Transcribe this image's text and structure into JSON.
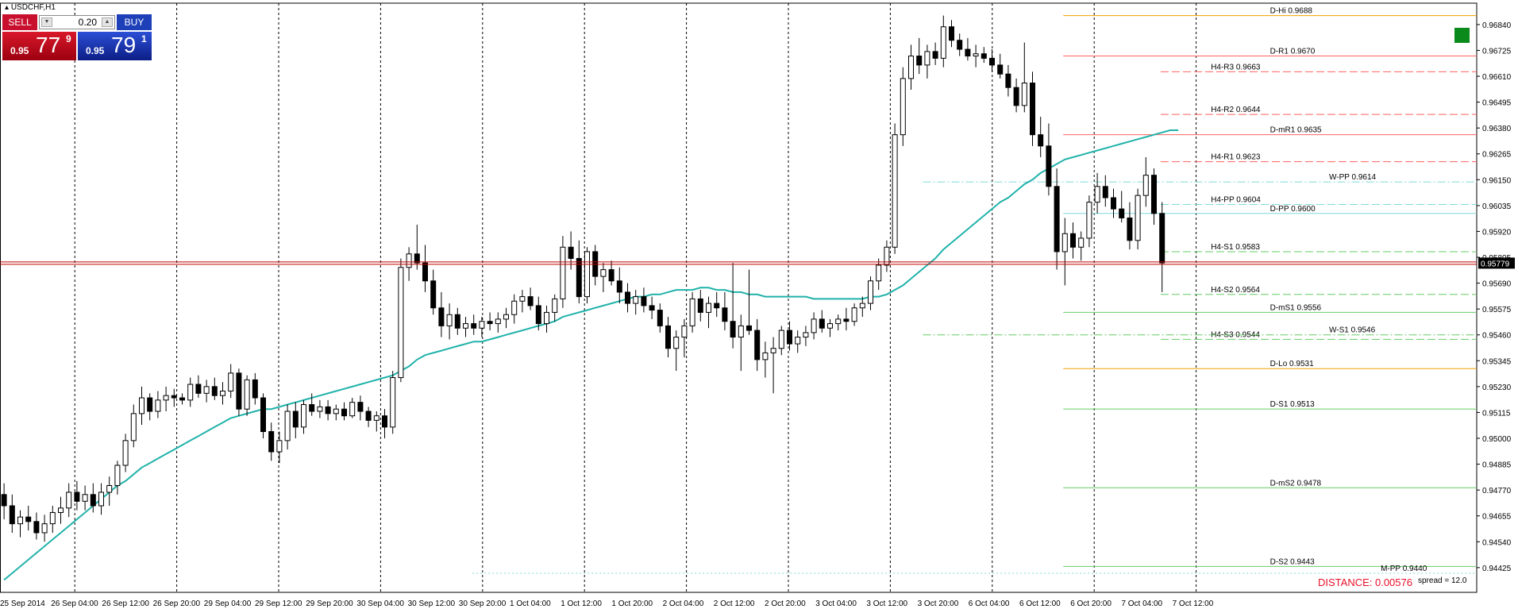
{
  "symbol": "USDCHF,H1",
  "trade_panel": {
    "sell_label": "SELL",
    "buy_label": "BUY",
    "lot": "0.20",
    "sell": {
      "small": "0.95",
      "big": "77",
      "sup": "9"
    },
    "buy": {
      "small": "0.95",
      "big": "79",
      "sup": "1"
    }
  },
  "distance": "DISTANCE: 0.00576",
  "spread": "spread = 12.0",
  "colors": {
    "bull_candle": "#ffffff",
    "bear_candle": "#000000",
    "moving_average": "#20b2aa",
    "bid_line": "#c00000",
    "pivot_red": "#ff6060",
    "pivot_orange": "#f0a000",
    "pivot_green": "#66cc66",
    "pivot_cyan": "#7fd8d8"
  },
  "chart_data": {
    "type": "candlestick",
    "title": "USDCHF,H1",
    "ylim": [
      0.94315,
      0.96935
    ],
    "y_ticks": [
      "0.96840",
      "0.96725",
      "0.96610",
      "0.96495",
      "0.96380",
      "0.96265",
      "0.96150",
      "0.96035",
      "0.95920",
      "0.95805",
      "0.95690",
      "0.95575",
      "0.95460",
      "0.95345",
      "0.95230",
      "0.95115",
      "0.95000",
      "0.94885",
      "0.94770",
      "0.94655",
      "0.94540",
      "0.94425"
    ],
    "x_labels": [
      "25 Sep 2014",
      "26 Sep 04:00",
      "26 Sep 12:00",
      "26 Sep 20:00",
      "29 Sep 04:00",
      "29 Sep 12:00",
      "29 Sep 20:00",
      "30 Sep 04:00",
      "30 Sep 12:00",
      "30 Sep 20:00",
      "1 Oct 04:00",
      "1 Oct 12:00",
      "1 Oct 20:00",
      "2 Oct 04:00",
      "2 Oct 12:00",
      "2 Oct 20:00",
      "3 Oct 04:00",
      "3 Oct 12:00",
      "3 Oct 20:00",
      "6 Oct 04:00",
      "6 Oct 12:00",
      "6 Oct 20:00",
      "7 Oct 04:00",
      "7 Oct 12:00"
    ],
    "bid_price": "0.95779",
    "bid_value": 0.95779,
    "ohlc": [
      [
        0.9475,
        0.948,
        0.9464,
        0.947
      ],
      [
        0.947,
        0.9475,
        0.9458,
        0.9462
      ],
      [
        0.9462,
        0.9468,
        0.9456,
        0.9465
      ],
      [
        0.9465,
        0.947,
        0.9459,
        0.9463
      ],
      [
        0.9463,
        0.9467,
        0.9455,
        0.9458
      ],
      [
        0.9458,
        0.9466,
        0.9454,
        0.9462
      ],
      [
        0.9462,
        0.947,
        0.9458,
        0.9467
      ],
      [
        0.9467,
        0.9474,
        0.9462,
        0.9469
      ],
      [
        0.9469,
        0.948,
        0.9465,
        0.9476
      ],
      [
        0.9476,
        0.9481,
        0.9468,
        0.9472
      ],
      [
        0.9472,
        0.9479,
        0.9468,
        0.9475
      ],
      [
        0.9475,
        0.948,
        0.9467,
        0.947
      ],
      [
        0.947,
        0.948,
        0.9466,
        0.9476
      ],
      [
        0.9476,
        0.9483,
        0.947,
        0.9479
      ],
      [
        0.9479,
        0.949,
        0.9475,
        0.9488
      ],
      [
        0.9488,
        0.9502,
        0.9485,
        0.9499
      ],
      [
        0.9499,
        0.9515,
        0.9496,
        0.9511
      ],
      [
        0.9511,
        0.9523,
        0.9506,
        0.9518
      ],
      [
        0.9518,
        0.952,
        0.9508,
        0.9512
      ],
      [
        0.9512,
        0.9521,
        0.9509,
        0.9517
      ],
      [
        0.9517,
        0.9523,
        0.9512,
        0.9519
      ],
      [
        0.9519,
        0.9522,
        0.9514,
        0.9518
      ],
      [
        0.9518,
        0.952,
        0.9515,
        0.9517
      ],
      [
        0.9517,
        0.9527,
        0.9514,
        0.9524
      ],
      [
        0.9524,
        0.9528,
        0.9518,
        0.952
      ],
      [
        0.952,
        0.9526,
        0.9516,
        0.9523
      ],
      [
        0.9523,
        0.9527,
        0.9517,
        0.9519
      ],
      [
        0.9519,
        0.9525,
        0.9515,
        0.9521
      ],
      [
        0.9521,
        0.9533,
        0.9518,
        0.9529
      ],
      [
        0.9529,
        0.9531,
        0.951,
        0.9513
      ],
      [
        0.9513,
        0.9528,
        0.951,
        0.9526
      ],
      [
        0.9526,
        0.9529,
        0.9515,
        0.9518
      ],
      [
        0.9518,
        0.952,
        0.95,
        0.9503
      ],
      [
        0.9503,
        0.9507,
        0.949,
        0.9494
      ],
      [
        0.9494,
        0.9503,
        0.9489,
        0.9499
      ],
      [
        0.9499,
        0.9515,
        0.9495,
        0.9512
      ],
      [
        0.9512,
        0.9516,
        0.95,
        0.9505
      ],
      [
        0.9505,
        0.9517,
        0.9502,
        0.9515
      ],
      [
        0.9515,
        0.952,
        0.951,
        0.9512
      ],
      [
        0.9512,
        0.9517,
        0.9509,
        0.9514
      ],
      [
        0.9514,
        0.9517,
        0.9508,
        0.9511
      ],
      [
        0.9511,
        0.9515,
        0.9508,
        0.9513
      ],
      [
        0.9513,
        0.9516,
        0.9508,
        0.951
      ],
      [
        0.951,
        0.9518,
        0.9509,
        0.9516
      ],
      [
        0.9516,
        0.9519,
        0.9508,
        0.9512
      ],
      [
        0.9512,
        0.9514,
        0.9505,
        0.9508
      ],
      [
        0.9508,
        0.9512,
        0.9503,
        0.951
      ],
      [
        0.951,
        0.9513,
        0.95,
        0.9505
      ],
      [
        0.9505,
        0.953,
        0.9502,
        0.9527
      ],
      [
        0.9527,
        0.958,
        0.9525,
        0.9576
      ],
      [
        0.9576,
        0.9585,
        0.957,
        0.9582
      ],
      [
        0.9582,
        0.9595,
        0.9575,
        0.9578
      ],
      [
        0.9578,
        0.9586,
        0.9565,
        0.957
      ],
      [
        0.957,
        0.9575,
        0.9555,
        0.9558
      ],
      [
        0.9558,
        0.9565,
        0.9545,
        0.955
      ],
      [
        0.955,
        0.956,
        0.9544,
        0.9555
      ],
      [
        0.9555,
        0.9558,
        0.9546,
        0.9549
      ],
      [
        0.9549,
        0.9554,
        0.9545,
        0.9551
      ],
      [
        0.9551,
        0.9555,
        0.9546,
        0.9549
      ],
      [
        0.9549,
        0.9554,
        0.9545,
        0.9552
      ],
      [
        0.9552,
        0.9556,
        0.9548,
        0.9551
      ],
      [
        0.9551,
        0.9556,
        0.9547,
        0.9553
      ],
      [
        0.9553,
        0.9558,
        0.9549,
        0.9555
      ],
      [
        0.9555,
        0.9564,
        0.9551,
        0.9561
      ],
      [
        0.9561,
        0.9566,
        0.9556,
        0.9563
      ],
      [
        0.9563,
        0.9567,
        0.9557,
        0.9559
      ],
      [
        0.9559,
        0.9563,
        0.9548,
        0.9551
      ],
      [
        0.9551,
        0.9559,
        0.9547,
        0.9556
      ],
      [
        0.9556,
        0.9564,
        0.9552,
        0.9562
      ],
      [
        0.9562,
        0.959,
        0.9558,
        0.9585
      ],
      [
        0.9585,
        0.9592,
        0.9575,
        0.958
      ],
      [
        0.958,
        0.9588,
        0.956,
        0.9563
      ],
      [
        0.9563,
        0.9585,
        0.956,
        0.9583
      ],
      [
        0.9583,
        0.9586,
        0.9568,
        0.9572
      ],
      [
        0.9572,
        0.9578,
        0.9565,
        0.9575
      ],
      [
        0.9575,
        0.9579,
        0.9568,
        0.957
      ],
      [
        0.957,
        0.9576,
        0.956,
        0.9565
      ],
      [
        0.9565,
        0.9569,
        0.9556,
        0.956
      ],
      [
        0.956,
        0.9566,
        0.9555,
        0.9563
      ],
      [
        0.9563,
        0.9567,
        0.9556,
        0.9559
      ],
      [
        0.9559,
        0.9563,
        0.9553,
        0.9557
      ],
      [
        0.9557,
        0.956,
        0.9547,
        0.955
      ],
      [
        0.955,
        0.9554,
        0.9536,
        0.954
      ],
      [
        0.954,
        0.9548,
        0.953,
        0.9545
      ],
      [
        0.9545,
        0.9553,
        0.9536,
        0.955
      ],
      [
        0.955,
        0.9565,
        0.9547,
        0.9562
      ],
      [
        0.9562,
        0.9566,
        0.9552,
        0.9556
      ],
      [
        0.9556,
        0.9563,
        0.9549,
        0.956
      ],
      [
        0.956,
        0.9565,
        0.9554,
        0.9558
      ],
      [
        0.9558,
        0.9565,
        0.9548,
        0.9552
      ],
      [
        0.9552,
        0.9578,
        0.954,
        0.9545
      ],
      [
        0.9545,
        0.9555,
        0.953,
        0.955
      ],
      [
        0.955,
        0.9575,
        0.9546,
        0.9548
      ],
      [
        0.9548,
        0.9553,
        0.953,
        0.9535
      ],
      [
        0.9535,
        0.9543,
        0.9527,
        0.9538
      ],
      [
        0.9538,
        0.9545,
        0.952,
        0.954
      ],
      [
        0.954,
        0.955,
        0.9537,
        0.9548
      ],
      [
        0.9548,
        0.9552,
        0.9539,
        0.9542
      ],
      [
        0.9542,
        0.9548,
        0.9538,
        0.9545
      ],
      [
        0.9545,
        0.955,
        0.9541,
        0.9547
      ],
      [
        0.9547,
        0.9556,
        0.9544,
        0.9553
      ],
      [
        0.9553,
        0.9557,
        0.9547,
        0.9549
      ],
      [
        0.9549,
        0.9553,
        0.9545,
        0.9551
      ],
      [
        0.9551,
        0.9555,
        0.9548,
        0.9553
      ],
      [
        0.9553,
        0.9558,
        0.9548,
        0.9552
      ],
      [
        0.9552,
        0.956,
        0.955,
        0.9558
      ],
      [
        0.9558,
        0.9563,
        0.9554,
        0.956
      ],
      [
        0.956,
        0.9572,
        0.9557,
        0.957
      ],
      [
        0.957,
        0.958,
        0.9566,
        0.9577
      ],
      [
        0.9577,
        0.9588,
        0.9574,
        0.9585
      ],
      [
        0.9585,
        0.964,
        0.9582,
        0.9635
      ],
      [
        0.9635,
        0.9665,
        0.963,
        0.966
      ],
      [
        0.966,
        0.9675,
        0.9655,
        0.967
      ],
      [
        0.967,
        0.9678,
        0.9662,
        0.9666
      ],
      [
        0.9666,
        0.9675,
        0.966,
        0.9672
      ],
      [
        0.9672,
        0.9676,
        0.9666,
        0.9669
      ],
      [
        0.9669,
        0.9688,
        0.9665,
        0.9683
      ],
      [
        0.9683,
        0.9686,
        0.9674,
        0.9677
      ],
      [
        0.9677,
        0.968,
        0.967,
        0.9673
      ],
      [
        0.9673,
        0.9678,
        0.9668,
        0.967
      ],
      [
        0.967,
        0.9675,
        0.9665,
        0.9671
      ],
      [
        0.9671,
        0.9674,
        0.9667,
        0.9669
      ],
      [
        0.9669,
        0.9673,
        0.9663,
        0.9666
      ],
      [
        0.9666,
        0.9671,
        0.966,
        0.9662
      ],
      [
        0.9662,
        0.9666,
        0.9652,
        0.9656
      ],
      [
        0.9656,
        0.966,
        0.9645,
        0.9648
      ],
      [
        0.9648,
        0.9676,
        0.9645,
        0.9658
      ],
      [
        0.9658,
        0.9663,
        0.963,
        0.9635
      ],
      [
        0.9635,
        0.9643,
        0.9625,
        0.963
      ],
      [
        0.963,
        0.964,
        0.9608,
        0.9612
      ],
      [
        0.9612,
        0.962,
        0.9575,
        0.9583
      ],
      [
        0.9583,
        0.9598,
        0.9568,
        0.9591
      ],
      [
        0.9591,
        0.9596,
        0.958,
        0.9585
      ],
      [
        0.9585,
        0.9592,
        0.9579,
        0.9589
      ],
      [
        0.9589,
        0.9608,
        0.9585,
        0.9605
      ],
      [
        0.9605,
        0.9618,
        0.96,
        0.9612
      ],
      [
        0.9612,
        0.9617,
        0.9603,
        0.9607
      ],
      [
        0.9607,
        0.9611,
        0.9598,
        0.9602
      ],
      [
        0.9602,
        0.961,
        0.9596,
        0.9598
      ],
      [
        0.9598,
        0.9605,
        0.9584,
        0.9588
      ],
      [
        0.9588,
        0.9611,
        0.9584,
        0.9608
      ],
      [
        0.9608,
        0.9625,
        0.9603,
        0.9617
      ],
      [
        0.9617,
        0.962,
        0.9595,
        0.96
      ],
      [
        0.96,
        0.9605,
        0.9565,
        0.9578
      ]
    ],
    "moving_average": [
      0.9437,
      0.944,
      0.9443,
      0.9446,
      0.9449,
      0.9452,
      0.9455,
      0.9458,
      0.9461,
      0.9464,
      0.9467,
      0.947,
      0.9473,
      0.9476,
      0.9479,
      0.9481,
      0.9484,
      0.9487,
      0.9489,
      0.9491,
      0.9493,
      0.9495,
      0.9497,
      0.9499,
      0.9501,
      0.9503,
      0.9505,
      0.9507,
      0.9509,
      0.951,
      0.9511,
      0.9512,
      0.9513,
      0.9513,
      0.9514,
      0.9515,
      0.9516,
      0.9517,
      0.9518,
      0.9519,
      0.952,
      0.9521,
      0.9522,
      0.9523,
      0.9524,
      0.9525,
      0.9526,
      0.9527,
      0.9528,
      0.953,
      0.9532,
      0.9535,
      0.9537,
      0.9538,
      0.9539,
      0.954,
      0.9541,
      0.9542,
      0.9543,
      0.9543,
      0.9544,
      0.9545,
      0.9546,
      0.9547,
      0.9548,
      0.9549,
      0.955,
      0.9551,
      0.9552,
      0.9554,
      0.9555,
      0.9556,
      0.9557,
      0.9558,
      0.9559,
      0.956,
      0.9561,
      0.9562,
      0.9563,
      0.9563,
      0.9564,
      0.9564,
      0.9565,
      0.9566,
      0.9566,
      0.9566,
      0.9567,
      0.9567,
      0.9566,
      0.9566,
      0.9565,
      0.9565,
      0.9564,
      0.9564,
      0.9563,
      0.9563,
      0.9563,
      0.9563,
      0.9563,
      0.9563,
      0.9562,
      0.9562,
      0.9562,
      0.9562,
      0.9562,
      0.9562,
      0.9562,
      0.9563,
      0.9563,
      0.9564,
      0.9566,
      0.9568,
      0.9571,
      0.9574,
      0.9577,
      0.958,
      0.9584,
      0.9587,
      0.959,
      0.9593,
      0.9596,
      0.9599,
      0.9602,
      0.9605,
      0.9607,
      0.961,
      0.9613,
      0.9615,
      0.9618,
      0.962,
      0.9622,
      0.9624,
      0.9625,
      0.9626,
      0.9627,
      0.9628,
      0.9629,
      0.963,
      0.9631,
      0.9632,
      0.9633,
      0.9634,
      0.9635,
      0.9636,
      0.9637,
      0.9637
    ],
    "pivot_levels": [
      {
        "label": "D-Hi 0.9688",
        "value": 0.9688,
        "color": "#f0a000",
        "style": "solid",
        "from": 0.72,
        "label_pos": 0.86
      },
      {
        "label": "D-R1 0.9670",
        "value": 0.967,
        "color": "#ff6060",
        "style": "solid",
        "from": 0.72,
        "label_pos": 0.86
      },
      {
        "label": "H4-R3 0.9663",
        "value": 0.9663,
        "color": "#ff6060",
        "style": "dashed",
        "from": 0.786,
        "label_pos": 0.82
      },
      {
        "label": "H4-R2 0.9644",
        "value": 0.9644,
        "color": "#ff6060",
        "style": "dashed",
        "from": 0.786,
        "label_pos": 0.82
      },
      {
        "label": "D-mR1 0.9635",
        "value": 0.9635,
        "color": "#ff6060",
        "style": "solid",
        "from": 0.72,
        "label_pos": 0.86
      },
      {
        "label": "H4-R1 0.9623",
        "value": 0.9623,
        "color": "#ff6060",
        "style": "dashed",
        "from": 0.786,
        "label_pos": 0.82
      },
      {
        "label": "W-PP 0.9614",
        "value": 0.9614,
        "color": "#7fd8d8",
        "style": "dashdot",
        "from": 0.625,
        "label_pos": 0.9
      },
      {
        "label": "H4-PP 0.9604",
        "value": 0.9604,
        "color": "#7fd8d8",
        "style": "dashed",
        "from": 0.786,
        "label_pos": 0.82
      },
      {
        "label": "D-PP 0.9600",
        "value": 0.96,
        "color": "#7fd8d8",
        "style": "solid",
        "from": 0.72,
        "label_pos": 0.86
      },
      {
        "label": "H4-S1 0.9583",
        "value": 0.9583,
        "color": "#66cc66",
        "style": "dashed",
        "from": 0.786,
        "label_pos": 0.82
      },
      {
        "label": "H4-S2 0.9564",
        "value": 0.9564,
        "color": "#66cc66",
        "style": "dashed",
        "from": 0.786,
        "label_pos": 0.82
      },
      {
        "label": "D-mS1 0.9556",
        "value": 0.9556,
        "color": "#66cc66",
        "style": "solid",
        "from": 0.72,
        "label_pos": 0.86
      },
      {
        "label": "H4-S3 0.9544",
        "value": 0.9544,
        "color": "#66cc66",
        "style": "dashed",
        "from": 0.786,
        "label_pos": 0.82
      },
      {
        "label": "W-S1 0.9546",
        "value": 0.9546,
        "color": "#66cc66",
        "style": "dashdot",
        "from": 0.625,
        "label_pos": 0.9
      },
      {
        "label": "D-Lo 0.9531",
        "value": 0.9531,
        "color": "#f0a000",
        "style": "solid",
        "from": 0.72,
        "label_pos": 0.86
      },
      {
        "label": "D-S1 0.9513",
        "value": 0.9513,
        "color": "#66cc66",
        "style": "solid",
        "from": 0.72,
        "label_pos": 0.86
      },
      {
        "label": "D-mS2 0.9478",
        "value": 0.9478,
        "color": "#66cc66",
        "style": "solid",
        "from": 0.72,
        "label_pos": 0.86
      },
      {
        "label": "D-S2 0.9443",
        "value": 0.9443,
        "color": "#66cc66",
        "style": "solid",
        "from": 0.72,
        "label_pos": 0.86
      },
      {
        "label": "M-PP 0.9440",
        "value": 0.944,
        "color": "#7fd8d8",
        "style": "dotted",
        "from": 0.32,
        "label_pos": 0.935
      }
    ],
    "grid": "vertical-dotted"
  }
}
